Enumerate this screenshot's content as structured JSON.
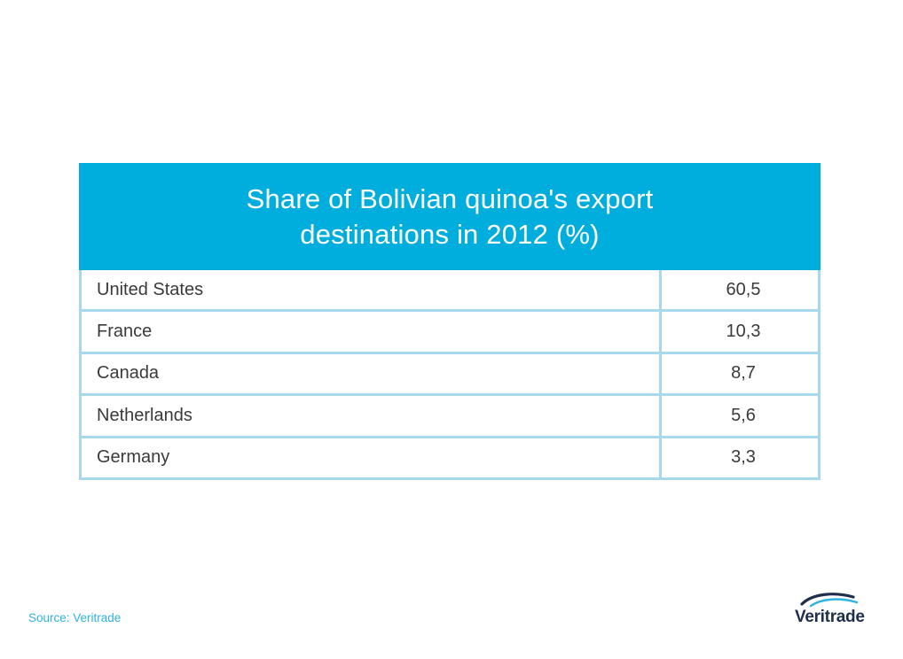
{
  "chart_data": {
    "type": "table",
    "title": "Share of Bolivian quinoa's export destinations in 2012 (%)",
    "columns": [
      "",
      ""
    ],
    "rows": [
      {
        "country": "United States",
        "value": "60,5"
      },
      {
        "country": "France",
        "value": "10,3"
      },
      {
        "country": "Canada",
        "value": "8,7"
      },
      {
        "country": "Netherlands",
        "value": "5,6"
      },
      {
        "country": "Germany",
        "value": "3,3"
      }
    ]
  },
  "source": "Source: Veritrade",
  "logo": {
    "text": "Veritrade",
    "icon": "veritrade-swoosh-icon"
  },
  "colors": {
    "header_bg": "#00aede",
    "grid_line": "#a8d8ec",
    "source_text": "#2fb3e0",
    "logo_dark": "#1f2e4a",
    "logo_accent": "#2fb3e0"
  }
}
